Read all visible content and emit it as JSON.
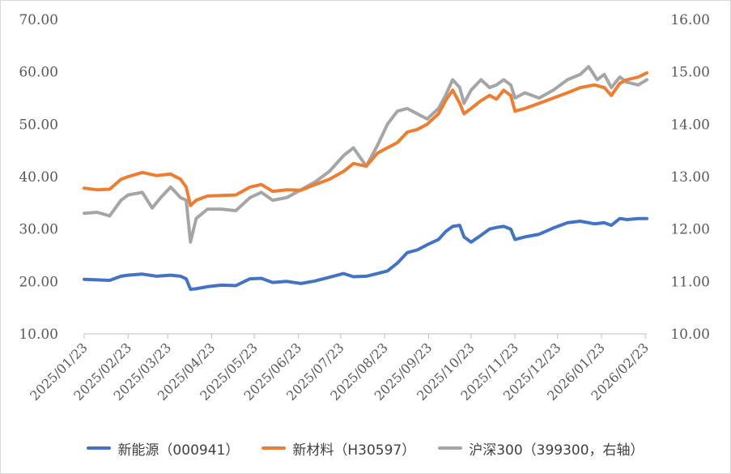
{
  "chart_data": {
    "type": "line",
    "title": "",
    "xlabel": "",
    "ylabel": "",
    "x_ticks": [
      "2025/01/23",
      "2025/02/23",
      "2025/03/23",
      "2025/04/23",
      "2025/05/23",
      "2025/06/23",
      "2025/07/23",
      "2025/08/23",
      "2025/09/23",
      "2025/10/23",
      "2025/11/23",
      "2025/12/23",
      "2026/01/23",
      "2026/02/23"
    ],
    "x_range": [
      "2025/01/23",
      "2026/02/24"
    ],
    "y_left_ticks": [
      "10.00",
      "20.00",
      "30.00",
      "40.00",
      "50.00",
      "60.00",
      "70.00"
    ],
    "y_right_ticks": [
      "10.00",
      "11.00",
      "12.00",
      "13.00",
      "14.00",
      "15.00",
      "16.00"
    ],
    "ylim_left": [
      10,
      70
    ],
    "ylim_right": [
      10,
      16
    ],
    "grid": false,
    "legend_position": "bottom",
    "series": [
      {
        "name": "新能源（000941）",
        "axis": "left",
        "color": "#4472C4",
        "points": [
          [
            "2025/01/23",
            20.4
          ],
          [
            "2025/02/01",
            20.3
          ],
          [
            "2025/02/10",
            20.2
          ],
          [
            "2025/02/18",
            21.0
          ],
          [
            "2025/02/23",
            21.2
          ],
          [
            "2025/03/05",
            21.4
          ],
          [
            "2025/03/15",
            21.0
          ],
          [
            "2025/03/25",
            21.2
          ],
          [
            "2025/04/01",
            21.0
          ],
          [
            "2025/04/05",
            20.5
          ],
          [
            "2025/04/08",
            18.5
          ],
          [
            "2025/04/12",
            18.6
          ],
          [
            "2025/04/20",
            19.0
          ],
          [
            "2025/04/30",
            19.3
          ],
          [
            "2025/05/10",
            19.2
          ],
          [
            "2025/05/20",
            20.5
          ],
          [
            "2025/05/28",
            20.6
          ],
          [
            "2025/06/05",
            19.8
          ],
          [
            "2025/06/15",
            20.0
          ],
          [
            "2025/06/25",
            19.6
          ],
          [
            "2025/07/05",
            20.1
          ],
          [
            "2025/07/15",
            20.8
          ],
          [
            "2025/07/25",
            21.5
          ],
          [
            "2025/08/01",
            20.9
          ],
          [
            "2025/08/10",
            21.0
          ],
          [
            "2025/08/18",
            21.5
          ],
          [
            "2025/08/25",
            22.0
          ],
          [
            "2025/09/01",
            23.5
          ],
          [
            "2025/09/08",
            25.5
          ],
          [
            "2025/09/15",
            26.0
          ],
          [
            "2025/09/22",
            27.0
          ],
          [
            "2025/09/30",
            28.0
          ],
          [
            "2025/10/05",
            29.5
          ],
          [
            "2025/10/10",
            30.5
          ],
          [
            "2025/10/15",
            30.7
          ],
          [
            "2025/10/18",
            28.5
          ],
          [
            "2025/10/23",
            27.5
          ],
          [
            "2025/10/30",
            28.8
          ],
          [
            "2025/11/05",
            30.0
          ],
          [
            "2025/11/10",
            30.3
          ],
          [
            "2025/11/15",
            30.5
          ],
          [
            "2025/11/20",
            30.0
          ],
          [
            "2025/11/23",
            28.0
          ],
          [
            "2025/11/30",
            28.5
          ],
          [
            "2025/12/10",
            29.0
          ],
          [
            "2025/12/20",
            30.2
          ],
          [
            "2025/12/30",
            31.2
          ],
          [
            "2026/01/08",
            31.5
          ],
          [
            "2026/01/18",
            31.0
          ],
          [
            "2026/01/25",
            31.2
          ],
          [
            "2026/01/30",
            30.7
          ],
          [
            "2026/02/05",
            32.0
          ],
          [
            "2026/02/10",
            31.8
          ],
          [
            "2026/02/18",
            32.0
          ],
          [
            "2026/02/24",
            32.0
          ]
        ]
      },
      {
        "name": "新材料（H30597）",
        "axis": "left",
        "color": "#ED7D31",
        "points": [
          [
            "2025/01/23",
            37.8
          ],
          [
            "2025/02/01",
            37.5
          ],
          [
            "2025/02/10",
            37.6
          ],
          [
            "2025/02/18",
            39.5
          ],
          [
            "2025/02/23",
            40.0
          ],
          [
            "2025/03/05",
            40.8
          ],
          [
            "2025/03/15",
            40.2
          ],
          [
            "2025/03/25",
            40.5
          ],
          [
            "2025/04/01",
            39.5
          ],
          [
            "2025/04/05",
            38.0
          ],
          [
            "2025/04/08",
            34.5
          ],
          [
            "2025/04/12",
            35.5
          ],
          [
            "2025/04/20",
            36.3
          ],
          [
            "2025/04/30",
            36.4
          ],
          [
            "2025/05/10",
            36.5
          ],
          [
            "2025/05/20",
            38.0
          ],
          [
            "2025/05/28",
            38.5
          ],
          [
            "2025/06/05",
            37.2
          ],
          [
            "2025/06/15",
            37.5
          ],
          [
            "2025/06/25",
            37.4
          ],
          [
            "2025/07/05",
            38.5
          ],
          [
            "2025/07/15",
            39.5
          ],
          [
            "2025/07/25",
            41.0
          ],
          [
            "2025/08/01",
            42.5
          ],
          [
            "2025/08/10",
            42.0
          ],
          [
            "2025/08/18",
            44.5
          ],
          [
            "2025/08/25",
            45.5
          ],
          [
            "2025/09/01",
            46.5
          ],
          [
            "2025/09/08",
            48.5
          ],
          [
            "2025/09/15",
            49.0
          ],
          [
            "2025/09/22",
            50.0
          ],
          [
            "2025/09/30",
            52.0
          ],
          [
            "2025/10/05",
            54.5
          ],
          [
            "2025/10/10",
            56.5
          ],
          [
            "2025/10/15",
            54.0
          ],
          [
            "2025/10/18",
            52.0
          ],
          [
            "2025/10/23",
            53.0
          ],
          [
            "2025/10/30",
            54.5
          ],
          [
            "2025/11/05",
            55.5
          ],
          [
            "2025/11/10",
            54.8
          ],
          [
            "2025/11/15",
            56.5
          ],
          [
            "2025/11/20",
            55.5
          ],
          [
            "2025/11/23",
            52.5
          ],
          [
            "2025/11/30",
            53.0
          ],
          [
            "2025/12/10",
            54.0
          ],
          [
            "2025/12/20",
            55.0
          ],
          [
            "2025/12/30",
            56.0
          ],
          [
            "2026/01/08",
            57.0
          ],
          [
            "2026/01/18",
            57.5
          ],
          [
            "2026/01/25",
            57.0
          ],
          [
            "2026/01/30",
            55.5
          ],
          [
            "2026/02/05",
            57.8
          ],
          [
            "2026/02/10",
            58.5
          ],
          [
            "2026/02/18",
            59.0
          ],
          [
            "2026/02/24",
            59.8
          ]
        ]
      },
      {
        "name": "沪深300（399300，右轴）",
        "axis": "right",
        "color": "#A5A5A5",
        "points": [
          [
            "2025/01/23",
            12.3
          ],
          [
            "2025/02/01",
            12.32
          ],
          [
            "2025/02/10",
            12.25
          ],
          [
            "2025/02/18",
            12.55
          ],
          [
            "2025/02/23",
            12.65
          ],
          [
            "2025/03/05",
            12.7
          ],
          [
            "2025/03/12",
            12.4
          ],
          [
            "2025/03/18",
            12.6
          ],
          [
            "2025/03/25",
            12.8
          ],
          [
            "2025/04/01",
            12.6
          ],
          [
            "2025/04/05",
            12.55
          ],
          [
            "2025/04/08",
            11.75
          ],
          [
            "2025/04/12",
            12.2
          ],
          [
            "2025/04/20",
            12.38
          ],
          [
            "2025/04/30",
            12.38
          ],
          [
            "2025/05/10",
            12.35
          ],
          [
            "2025/05/20",
            12.6
          ],
          [
            "2025/05/28",
            12.7
          ],
          [
            "2025/06/05",
            12.55
          ],
          [
            "2025/06/15",
            12.6
          ],
          [
            "2025/06/25",
            12.75
          ],
          [
            "2025/07/05",
            12.9
          ],
          [
            "2025/07/15",
            13.1
          ],
          [
            "2025/07/25",
            13.4
          ],
          [
            "2025/08/01",
            13.55
          ],
          [
            "2025/08/10",
            13.2
          ],
          [
            "2025/08/18",
            13.6
          ],
          [
            "2025/08/25",
            14.0
          ],
          [
            "2025/09/01",
            14.25
          ],
          [
            "2025/09/08",
            14.3
          ],
          [
            "2025/09/15",
            14.2
          ],
          [
            "2025/09/22",
            14.1
          ],
          [
            "2025/09/30",
            14.3
          ],
          [
            "2025/10/05",
            14.55
          ],
          [
            "2025/10/10",
            14.85
          ],
          [
            "2025/10/15",
            14.7
          ],
          [
            "2025/10/18",
            14.4
          ],
          [
            "2025/10/23",
            14.65
          ],
          [
            "2025/10/30",
            14.85
          ],
          [
            "2025/11/05",
            14.7
          ],
          [
            "2025/11/10",
            14.75
          ],
          [
            "2025/11/15",
            14.85
          ],
          [
            "2025/11/20",
            14.75
          ],
          [
            "2025/11/23",
            14.5
          ],
          [
            "2025/11/30",
            14.6
          ],
          [
            "2025/12/10",
            14.5
          ],
          [
            "2025/12/20",
            14.65
          ],
          [
            "2025/12/30",
            14.85
          ],
          [
            "2026/01/08",
            14.95
          ],
          [
            "2026/01/14",
            15.1
          ],
          [
            "2026/01/20",
            14.85
          ],
          [
            "2026/01/25",
            14.95
          ],
          [
            "2026/01/30",
            14.7
          ],
          [
            "2026/02/05",
            14.9
          ],
          [
            "2026/02/10",
            14.8
          ],
          [
            "2026/02/18",
            14.75
          ],
          [
            "2026/02/24",
            14.85
          ]
        ]
      }
    ]
  }
}
